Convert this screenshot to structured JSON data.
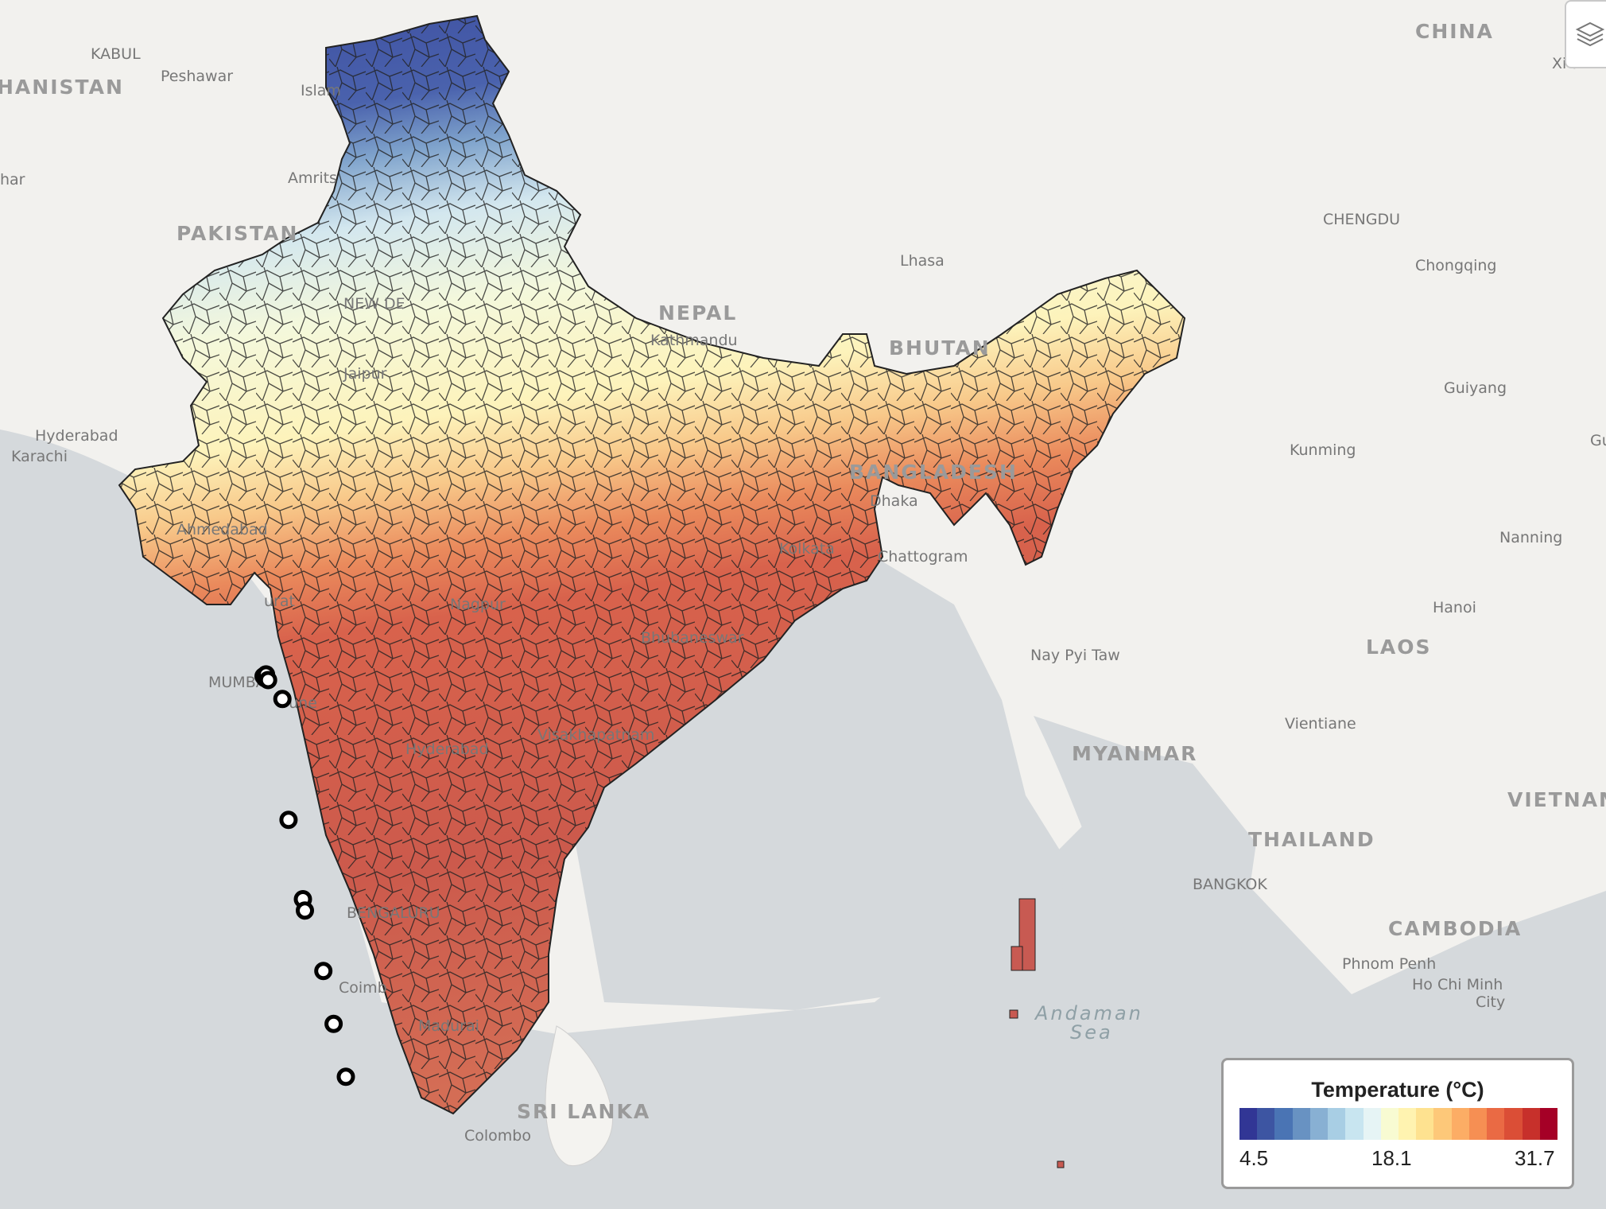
{
  "legend": {
    "title": "Temperature (°C)",
    "min_label": "4.5",
    "mid_label": "18.1",
    "max_label": "31.7",
    "colors": [
      "#313695",
      "#3d55a2",
      "#4a74b4",
      "#6892c2",
      "#88b0d3",
      "#a8cee4",
      "#c8e5f0",
      "#e6f4f5",
      "#f8fbd2",
      "#fff3b0",
      "#fee290",
      "#fdc879",
      "#fcad65",
      "#f68f53",
      "#ea6a44",
      "#db4e36",
      "#c7302b",
      "#a50026"
    ]
  },
  "map_labels": {
    "countries": [
      "CHINA",
      "PAKISTAN",
      "NEPAL",
      "BHUTAN",
      "BANGLADESH",
      "MYANMAR",
      "LAOS",
      "THAILAND",
      "VIETNAM",
      "CAMBODIA",
      "SRI LANKA",
      "HANISTAN"
    ],
    "cities": [
      "KABUL",
      "Peshawar",
      "Islam",
      "Amrits",
      "har",
      "Hyderabad",
      "Karachi",
      "NEW DE",
      "Jaipur",
      "Ahmedabad",
      "urat",
      "MUMBAI",
      "Pune",
      "Hyderabad",
      "Nagpur",
      "Visakhapatnam",
      "Bhubaneswar",
      "Kolkata",
      "Dhaka",
      "Chattogram",
      "Kathmandu",
      "Lhasa",
      "CHENGDU",
      "Chongqing",
      "Guiyang",
      "Kunming",
      "Nanning",
      "Hanoi",
      "Nay Pyi Taw",
      "Vientiane",
      "BANGKOK",
      "Phnom Penh",
      "Ho Chi Minh",
      "City",
      "BENGALURU",
      "Coimb",
      "Madurai",
      "Colombo",
      "Xi'an",
      "Gu"
    ],
    "seas": [
      "Andaman",
      "Sea"
    ]
  },
  "markers": [
    {
      "lon": 72.88,
      "lat": 19.1
    },
    {
      "lon": 72.95,
      "lat": 19.05
    },
    {
      "lon": 73.0,
      "lat": 19.15
    },
    {
      "lon": 73.1,
      "lat": 19.0
    },
    {
      "lon": 73.8,
      "lat": 18.5
    },
    {
      "lon": 74.1,
      "lat": 15.3
    },
    {
      "lon": 74.8,
      "lat": 13.2
    },
    {
      "lon": 74.9,
      "lat": 12.9
    },
    {
      "lon": 75.8,
      "lat": 11.3
    },
    {
      "lon": 76.3,
      "lat": 9.9
    },
    {
      "lon": 76.9,
      "lat": 8.5
    }
  ],
  "icons": {
    "layers": "layers-icon"
  }
}
